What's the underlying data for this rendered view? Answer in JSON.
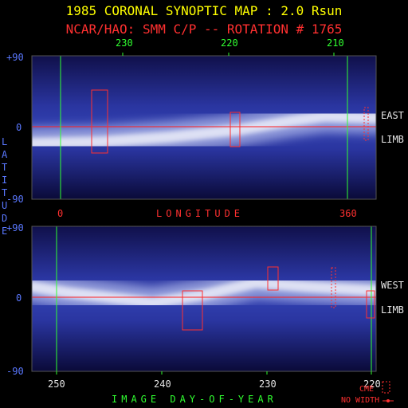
{
  "header": {
    "title": "1985 CORONAL SYNOPTIC MAP : 2.0 Rsun",
    "subtitle": "NCAR/HAO: SMM C/P -- ROTATION # 1765"
  },
  "colors": {
    "title": "#ffff00",
    "subtitle": "#ff3030",
    "day_axis": "#30ff30",
    "lat_axis": "#5a78ff",
    "equator": "#ff2020",
    "cme_box": "#ff3030",
    "streamer": "#dde4ff",
    "background": "#10104a"
  },
  "chart_data": [
    {
      "type": "heatmap",
      "panel": "top",
      "limb_label_1": "EAST",
      "limb_label_2": "LIMB",
      "xlabel": "LONGITUDE",
      "x_ticks_top": [
        "230",
        "220",
        "210"
      ],
      "x_ticks_bottom": [
        "0",
        "360"
      ],
      "y_ticks": [
        "+90",
        "0",
        "-90"
      ],
      "ylim": [
        -90,
        90
      ],
      "streamer_belt_latitude": [
        [
          0,
          -20
        ],
        [
          20,
          -18
        ],
        [
          40,
          -12
        ],
        [
          60,
          -3
        ],
        [
          75,
          8
        ],
        [
          85,
          14
        ],
        [
          100,
          12
        ]
      ],
      "cme_marks": [
        "solid",
        "solid",
        "dotted"
      ]
    },
    {
      "type": "heatmap",
      "panel": "bottom",
      "ylabel": "LATITUDE",
      "limb_label_1": "WEST",
      "limb_label_2": "LIMB",
      "xlabel": "IMAGE DAY-OF-YEAR",
      "x_ticks": [
        "250",
        "240",
        "230",
        "220"
      ],
      "y_ticks": [
        "+90",
        "0",
        "-90"
      ],
      "ylim": [
        -90,
        90
      ],
      "streamer_belt_latitude": [
        [
          0,
          15
        ],
        [
          10,
          8
        ],
        [
          20,
          3
        ],
        [
          35,
          -5
        ],
        [
          50,
          5
        ],
        [
          65,
          20
        ],
        [
          80,
          15
        ],
        [
          100,
          10
        ]
      ],
      "cme_marks": [
        "solid",
        "solid",
        "dotted",
        "solid"
      ]
    }
  ],
  "legend": {
    "cme_label": "CME",
    "no_width_label": "NO WIDTH"
  }
}
